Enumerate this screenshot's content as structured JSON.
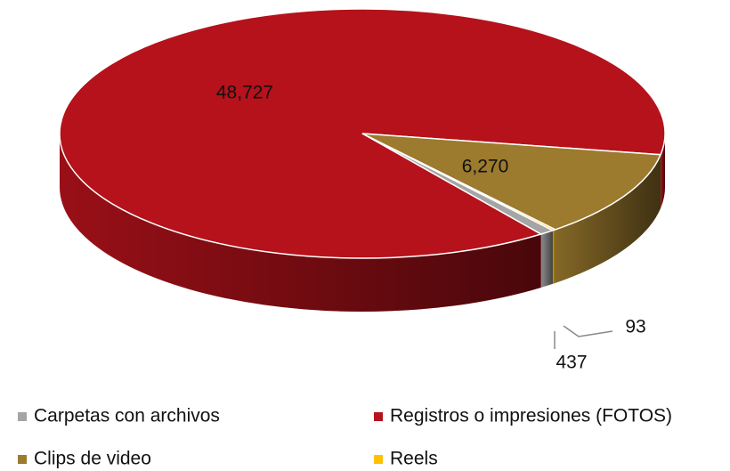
{
  "chart_data": {
    "type": "pie",
    "categories": [
      "Carpetas con archivos",
      "Registros o impresiones (FOTOS)",
      "Clips de video",
      "Reels"
    ],
    "values": [
      437,
      48727,
      6270,
      93
    ],
    "value_labels": [
      "437",
      "48,727",
      "6,270",
      "93"
    ],
    "colors": [
      "#a5a5a5",
      "#b5121b",
      "#9c7a2e",
      "#ffc000"
    ],
    "legend": "bottom"
  }
}
